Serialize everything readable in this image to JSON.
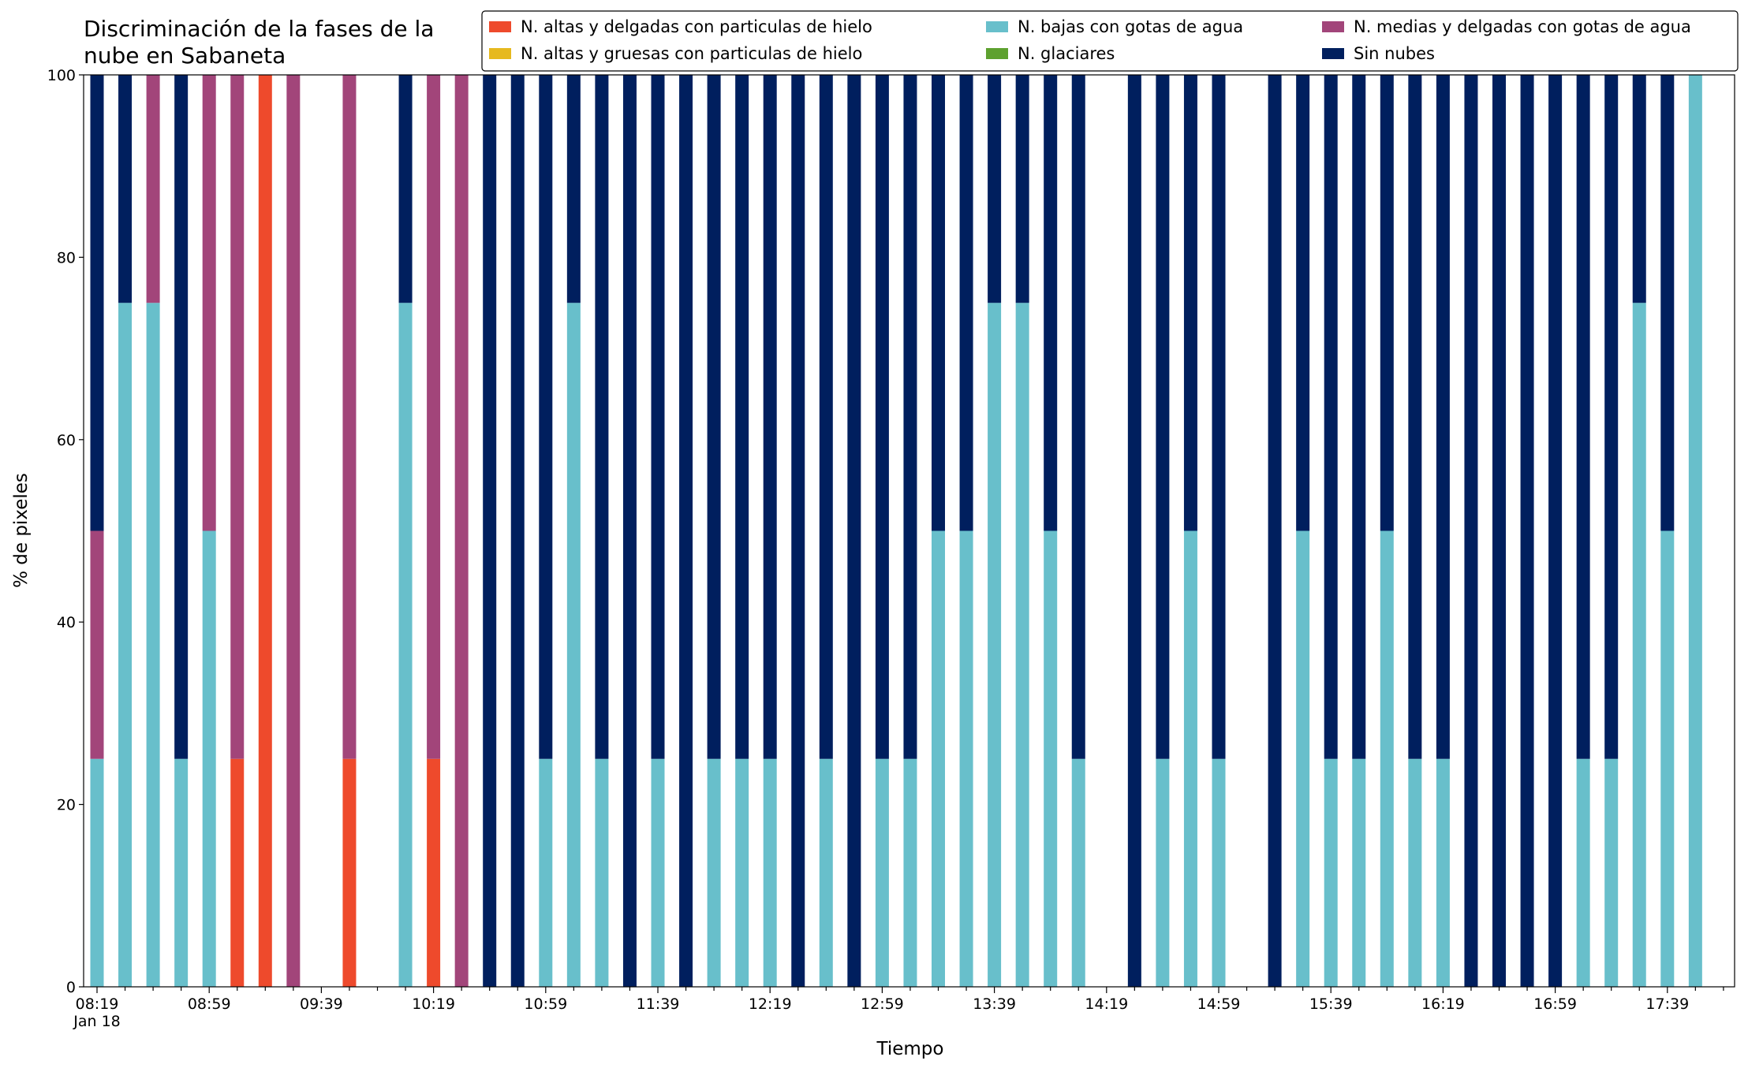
{
  "chart_data": {
    "type": "stacked_bar",
    "title": "Discriminación de la fases de la\nnube en Sabaneta",
    "x_label": "Tiempo",
    "y_label": "% de pixeles",
    "x_date_label": "Jan 18",
    "categories": [
      "08:19",
      null,
      null,
      null,
      "08:59",
      null,
      null,
      null,
      "09:39",
      null,
      null,
      null,
      "10:19",
      null,
      null,
      null,
      "10:59",
      null,
      null,
      null,
      "11:39",
      null,
      null,
      null,
      "12:19",
      null,
      null,
      null,
      "12:59",
      null,
      null,
      null,
      "13:39",
      null,
      null,
      null,
      "14:19",
      null,
      null,
      null,
      "14:59",
      null,
      null,
      null,
      "15:39",
      null,
      null,
      null,
      "16:19",
      null,
      null,
      null,
      "16:59",
      null,
      null,
      null,
      "17:39",
      null
    ],
    "ylim": [
      0,
      100
    ],
    "yticks": [
      0,
      20,
      40,
      60,
      80,
      100
    ],
    "legend": "upper right",
    "series": [
      {
        "name": "N. altas y delgadas con particulas de hielo",
        "color": "#ee4a2c",
        "values": [
          0,
          0,
          0,
          0,
          0,
          25,
          100,
          0,
          0,
          25,
          0,
          0,
          25,
          0,
          0,
          0,
          0,
          0,
          0,
          0,
          0,
          0,
          0,
          0,
          0,
          0,
          0,
          0,
          0,
          0,
          0,
          0,
          0,
          0,
          0,
          0,
          0,
          0,
          0,
          0,
          0,
          0,
          0,
          0,
          0,
          0,
          0,
          0,
          0,
          0,
          0,
          0,
          0,
          0,
          0,
          0,
          0,
          0
        ]
      },
      {
        "name": "N. altas y gruesas con particulas de hielo",
        "color": "#e6b91e",
        "values": [
          0,
          0,
          0,
          0,
          0,
          0,
          0,
          0,
          0,
          0,
          0,
          0,
          0,
          0,
          0,
          0,
          0,
          0,
          0,
          0,
          0,
          0,
          0,
          0,
          0,
          0,
          0,
          0,
          0,
          0,
          0,
          0,
          0,
          0,
          0,
          0,
          0,
          0,
          0,
          0,
          0,
          0,
          0,
          0,
          0,
          0,
          0,
          0,
          0,
          0,
          0,
          0,
          0,
          0,
          0,
          0,
          0,
          0
        ]
      },
      {
        "name": "N. bajas con gotas de agua",
        "color": "#68bfcb",
        "values": [
          25,
          75,
          75,
          25,
          50,
          0,
          0,
          0,
          0,
          0,
          0,
          75,
          0,
          0,
          0,
          0,
          25,
          75,
          25,
          0,
          25,
          0,
          25,
          25,
          25,
          0,
          25,
          0,
          25,
          25,
          50,
          50,
          75,
          75,
          50,
          25,
          0,
          0,
          25,
          50,
          25,
          0,
          0,
          50,
          25,
          25,
          50,
          25,
          25,
          0,
          0,
          0,
          0,
          25,
          25,
          75,
          50,
          100
        ]
      },
      {
        "name": "N. glaciares",
        "color": "#5ea12f",
        "values": [
          0,
          0,
          0,
          0,
          0,
          0,
          0,
          0,
          0,
          0,
          0,
          0,
          0,
          0,
          0,
          0,
          0,
          0,
          0,
          0,
          0,
          0,
          0,
          0,
          0,
          0,
          0,
          0,
          0,
          0,
          0,
          0,
          0,
          0,
          0,
          0,
          0,
          0,
          0,
          0,
          0,
          0,
          0,
          0,
          0,
          0,
          0,
          0,
          0,
          0,
          0,
          0,
          0,
          0,
          0,
          0,
          0,
          0
        ]
      },
      {
        "name": "N. medias y delgadas con gotas de agua",
        "color": "#a2457a",
        "values": [
          25,
          0,
          25,
          0,
          50,
          75,
          0,
          100,
          0,
          75,
          0,
          0,
          75,
          100,
          0,
          0,
          0,
          0,
          0,
          0,
          0,
          0,
          0,
          0,
          0,
          0,
          0,
          0,
          0,
          0,
          0,
          0,
          0,
          0,
          0,
          0,
          0,
          0,
          0,
          0,
          0,
          0,
          0,
          0,
          0,
          0,
          0,
          0,
          0,
          0,
          0,
          0,
          0,
          0,
          0,
          0,
          0,
          0
        ]
      },
      {
        "name": "Sin nubes",
        "color": "#001f5e",
        "values": [
          50,
          25,
          0,
          75,
          0,
          0,
          0,
          0,
          0,
          0,
          0,
          25,
          0,
          0,
          100,
          100,
          75,
          25,
          75,
          100,
          75,
          100,
          75,
          75,
          75,
          100,
          75,
          100,
          75,
          75,
          50,
          50,
          25,
          25,
          50,
          75,
          0,
          100,
          75,
          50,
          75,
          0,
          100,
          50,
          75,
          75,
          50,
          75,
          75,
          100,
          100,
          100,
          100,
          75,
          75,
          25,
          50,
          0
        ]
      }
    ]
  }
}
